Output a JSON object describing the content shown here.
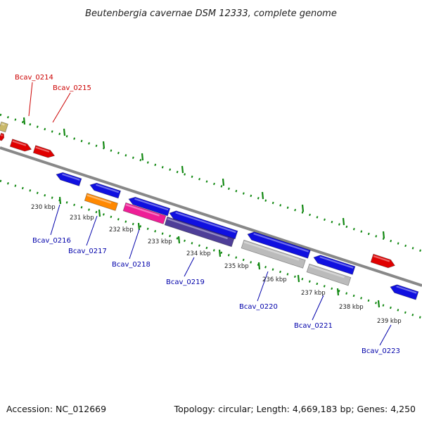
{
  "title": "Beutenbergia cavernae DSM 12333, complete genome",
  "footer": {
    "accession": "Accession: NC_012669",
    "summary": "Topology: circular; Length: 4,669,183 bp; Genes: 4,250"
  },
  "colors": {
    "forward_label": "#cc0000",
    "reverse_label": "#0000aa",
    "tick_green": "#118811",
    "backbone": "#888888"
  },
  "kbp_labels": [
    "230 kbp",
    "231 kbp",
    "232 kbp",
    "233 kbp",
    "234 kbp",
    "235 kbp",
    "236 kbp",
    "237 kbp",
    "238 kbp",
    "239 kbp"
  ],
  "gene_labels": [
    {
      "text": "Bcav_0214",
      "strand": "forward"
    },
    {
      "text": "Bcav_0215",
      "strand": "forward"
    },
    {
      "text": "Bcav_0216",
      "strand": "reverse"
    },
    {
      "text": "Bcav_0217",
      "strand": "reverse"
    },
    {
      "text": "Bcav_0218",
      "strand": "reverse"
    },
    {
      "text": "Bcav_0219",
      "strand": "reverse"
    },
    {
      "text": "Bcav_0220",
      "strand": "reverse"
    },
    {
      "text": "Bcav_0221",
      "strand": "reverse"
    },
    {
      "text": "Bcav_0223",
      "strand": "reverse"
    }
  ]
}
